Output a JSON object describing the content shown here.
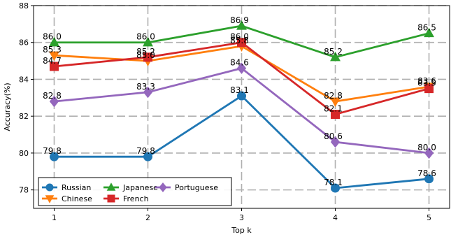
{
  "chart_data": {
    "type": "line",
    "title": "",
    "xlabel": "Top k",
    "ylabel": "Accuracy(%)",
    "x": [
      1,
      2,
      3,
      4,
      5
    ],
    "ylim": [
      77,
      88
    ],
    "yticks": [
      78,
      80,
      82,
      84,
      86,
      88
    ],
    "grid": true,
    "legend_position": "bottom-left",
    "series": [
      {
        "name": "Russian",
        "color": "#1f77b4",
        "marker": "circle",
        "values": [
          79.8,
          79.8,
          83.1,
          78.1,
          78.6
        ],
        "labels": [
          "79.8",
          "79.8",
          "83.1",
          "78.1",
          "78.6"
        ]
      },
      {
        "name": "Chinese",
        "color": "#ff7f0e",
        "marker": "triangle-down",
        "values": [
          85.3,
          85.0,
          85.8,
          82.8,
          83.6
        ],
        "labels": [
          "85.3",
          "85.0",
          "85.8",
          "82.8",
          "83.6"
        ]
      },
      {
        "name": "Japanese",
        "color": "#2ca02c",
        "marker": "triangle-up",
        "values": [
          86.0,
          86.0,
          86.9,
          85.2,
          86.5
        ],
        "labels": [
          "86.0",
          "86.0",
          "86.9",
          "85.2",
          "86.5"
        ]
      },
      {
        "name": "French",
        "color": "#d62728",
        "marker": "square",
        "values": [
          84.7,
          85.2,
          86.0,
          82.1,
          83.5
        ],
        "labels": [
          "84.7",
          "85.2",
          "86.0",
          "82.1",
          "83.5"
        ]
      },
      {
        "name": "Portuguese",
        "color": "#9467bd",
        "marker": "diamond",
        "values": [
          82.8,
          83.3,
          84.6,
          80.6,
          80.0
        ],
        "labels": [
          "82.8",
          "83.3",
          "84.6",
          "80.6",
          "80.0"
        ]
      }
    ]
  }
}
